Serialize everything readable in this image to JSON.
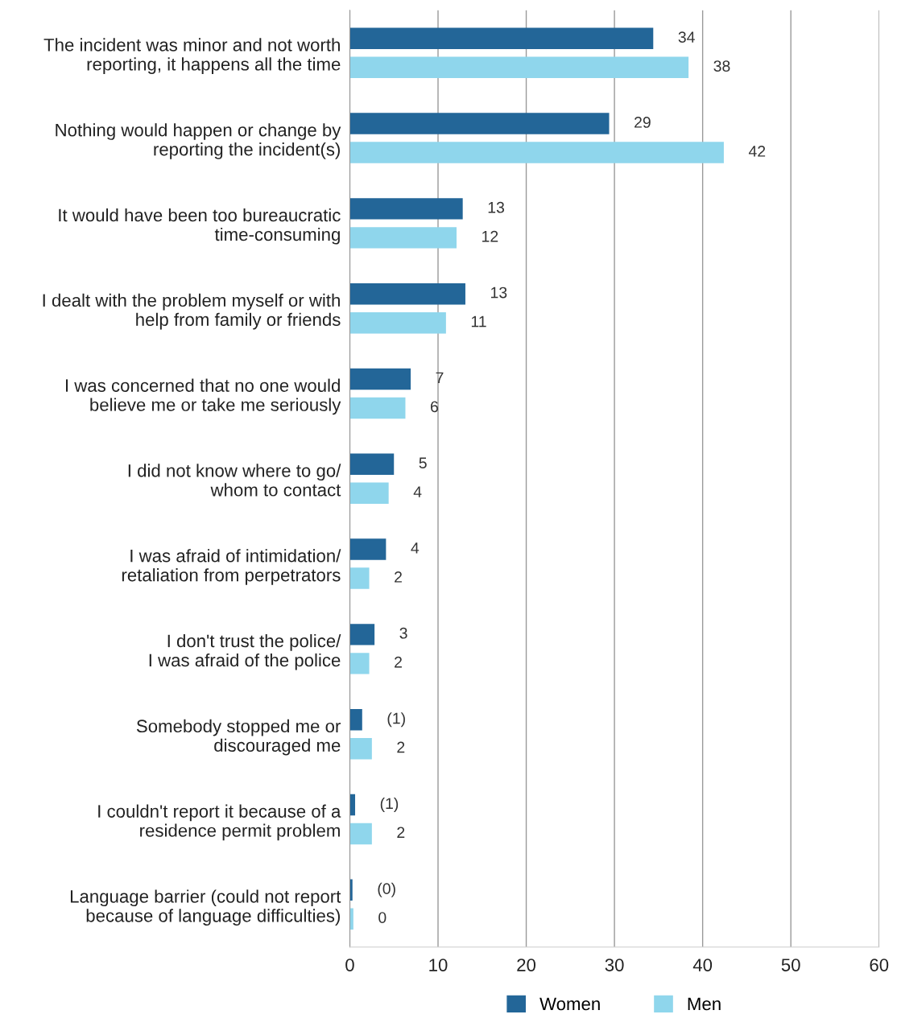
{
  "chart_data": {
    "type": "bar",
    "orientation": "horizontal",
    "categories": [
      "The incident was minor and not worth\nreporting, it happens all the time",
      "Nothing would happen or change by\nreporting the incident(s)",
      "It would have been too bureaucratic\ntime-consuming",
      "I dealt with the problem myself or with\nhelp from family or friends",
      "I was concerned that no one would\nbelieve me or take me seriously",
      "I did not know where to go/\nwhom to contact",
      "I was afraid of intimidation/\nretaliation from perpetrators",
      "I don't trust the police/\nI was afraid of the police",
      "Somebody stopped me or\ndiscouraged me",
      "I couldn't report it because of a\nresidence permit problem",
      "Language barrier (could not report\nbecause of language difficulties)"
    ],
    "series": [
      {
        "name": "Women",
        "color": "#236698",
        "values": [
          34.4,
          29.4,
          12.8,
          13.1,
          6.9,
          5.0,
          4.1,
          2.8,
          1.4,
          0.6,
          0.3
        ],
        "value_labels": [
          "34",
          "29",
          "13",
          "13",
          "7",
          "5",
          "4",
          "3",
          "(1)",
          "(1)",
          "(0)"
        ]
      },
      {
        "name": "Men",
        "color": "#8fd6ec",
        "values": [
          38.4,
          42.4,
          12.1,
          10.9,
          6.3,
          4.4,
          2.2,
          2.2,
          2.5,
          2.5,
          0.4
        ],
        "value_labels": [
          "38",
          "42",
          "12",
          "11",
          "6",
          "4",
          "2",
          "2",
          "2",
          "2",
          "0"
        ]
      }
    ],
    "xlim": [
      0,
      60
    ],
    "xticks": [
      0,
      10,
      20,
      30,
      40,
      50,
      60
    ],
    "grid": "x",
    "legend": "bottom"
  }
}
